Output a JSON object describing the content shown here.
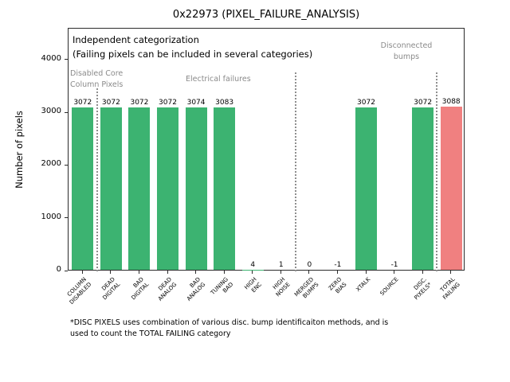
{
  "title": "0x22973 (PIXEL_FAILURE_ANALYSIS)",
  "ylabel": "Number of pixels",
  "annotations": {
    "independent": "Independent categorization\n(Failing pixels can be included in several categories)",
    "group_disabled": "Disabled Core\nColumn Pixels",
    "group_electrical": "Electrical failures",
    "group_disconnected": "Disconnected\nbumps"
  },
  "footnote": "*DISC PIXELS uses combination of various disc. bump identificaiton methods, and is\nused to count the TOTAL FAILING category",
  "chart_data": {
    "type": "bar",
    "title": "0x22973 (PIXEL_FAILURE_ANALYSIS)",
    "xlabel": "",
    "ylabel": "Number of pixels",
    "categories": [
      "COLUMN\nDISABLED",
      "DEAD\nDIGITAL",
      "BAD\nDIGITAL",
      "DEAD\nANALOG",
      "BAD\nANALOG",
      "TUNING\nBAD",
      "HIGH\nENC",
      "HIGH\nNOISE",
      "MERGED\nBUMPS",
      "ZERO\nBIAS",
      "XTALK",
      "SOURCE",
      "DISC.\nPIXELS*",
      "TOTAL\nFAILING"
    ],
    "values": [
      3072,
      3072,
      3072,
      3072,
      3074,
      3083,
      4,
      1,
      0,
      -1,
      3072,
      -1,
      3072,
      3088
    ],
    "bar_colors": [
      "#3cb371",
      "#3cb371",
      "#3cb371",
      "#3cb371",
      "#3cb371",
      "#3cb371",
      "#3cb371",
      "#3cb371",
      "#3cb371",
      "#3cb371",
      "#3cb371",
      "#3cb371",
      "#3cb371",
      "#f08080"
    ],
    "separator_color": "#8f8f8f",
    "group_label_color": "#8a8a8a",
    "yticks": [
      0,
      1000,
      2000,
      3000,
      4000
    ],
    "ylim": [
      0,
      4600
    ],
    "grid": false,
    "legend": "none",
    "separators_before_index": [
      1,
      8,
      13
    ]
  }
}
